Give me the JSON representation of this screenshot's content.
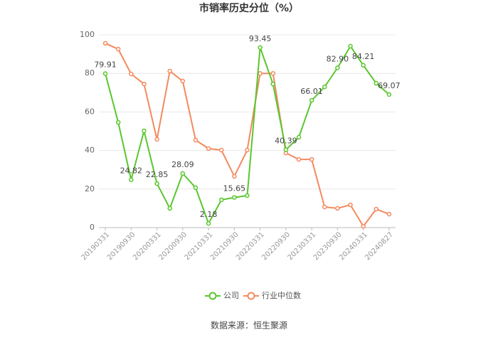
{
  "chart_data": {
    "type": "line",
    "title": "市销率历史分位（%）",
    "categories": [
      "20190331",
      null,
      "20190930",
      null,
      "20200331",
      null,
      "20200930",
      null,
      "20210331",
      null,
      "20210930",
      null,
      "20220331",
      null,
      "20220930",
      null,
      "20230331",
      null,
      "20230930",
      null,
      "20240331",
      null,
      "20240827"
    ],
    "series": [
      {
        "name": "公司",
        "color": "#5ac72d",
        "values": [
          79.91,
          54.6,
          24.82,
          50.2,
          22.85,
          10,
          28.09,
          20.7,
          2.18,
          14.4,
          15.65,
          16.6,
          93.45,
          74.5,
          40.39,
          46.9,
          66.01,
          73,
          82.9,
          94.1,
          84.21,
          74.9,
          69.07
        ],
        "value_labels": [
          "79.91",
          null,
          "24.82",
          null,
          "22.85",
          null,
          "28.09",
          null,
          "2.18",
          null,
          "15.65",
          null,
          "93.45",
          null,
          "40.39",
          null,
          "66.01",
          null,
          "82.90",
          null,
          "84.21",
          null,
          "69.07"
        ]
      },
      {
        "name": "行业中位数",
        "color": "#f4895f",
        "values": [
          95.6,
          92.6,
          79.7,
          74.5,
          45.8,
          81.2,
          76,
          45.4,
          41,
          40.2,
          26.6,
          40.2,
          80,
          80,
          38.7,
          35.4,
          35.4,
          10.7,
          10,
          11.8,
          0.7,
          9.6,
          7
        ]
      }
    ],
    "ylim": [
      0,
      100
    ],
    "yticks": [
      0,
      20,
      40,
      60,
      80,
      100
    ],
    "grid": true,
    "legend": "bottom",
    "source": "数据来源：恒生聚源"
  }
}
